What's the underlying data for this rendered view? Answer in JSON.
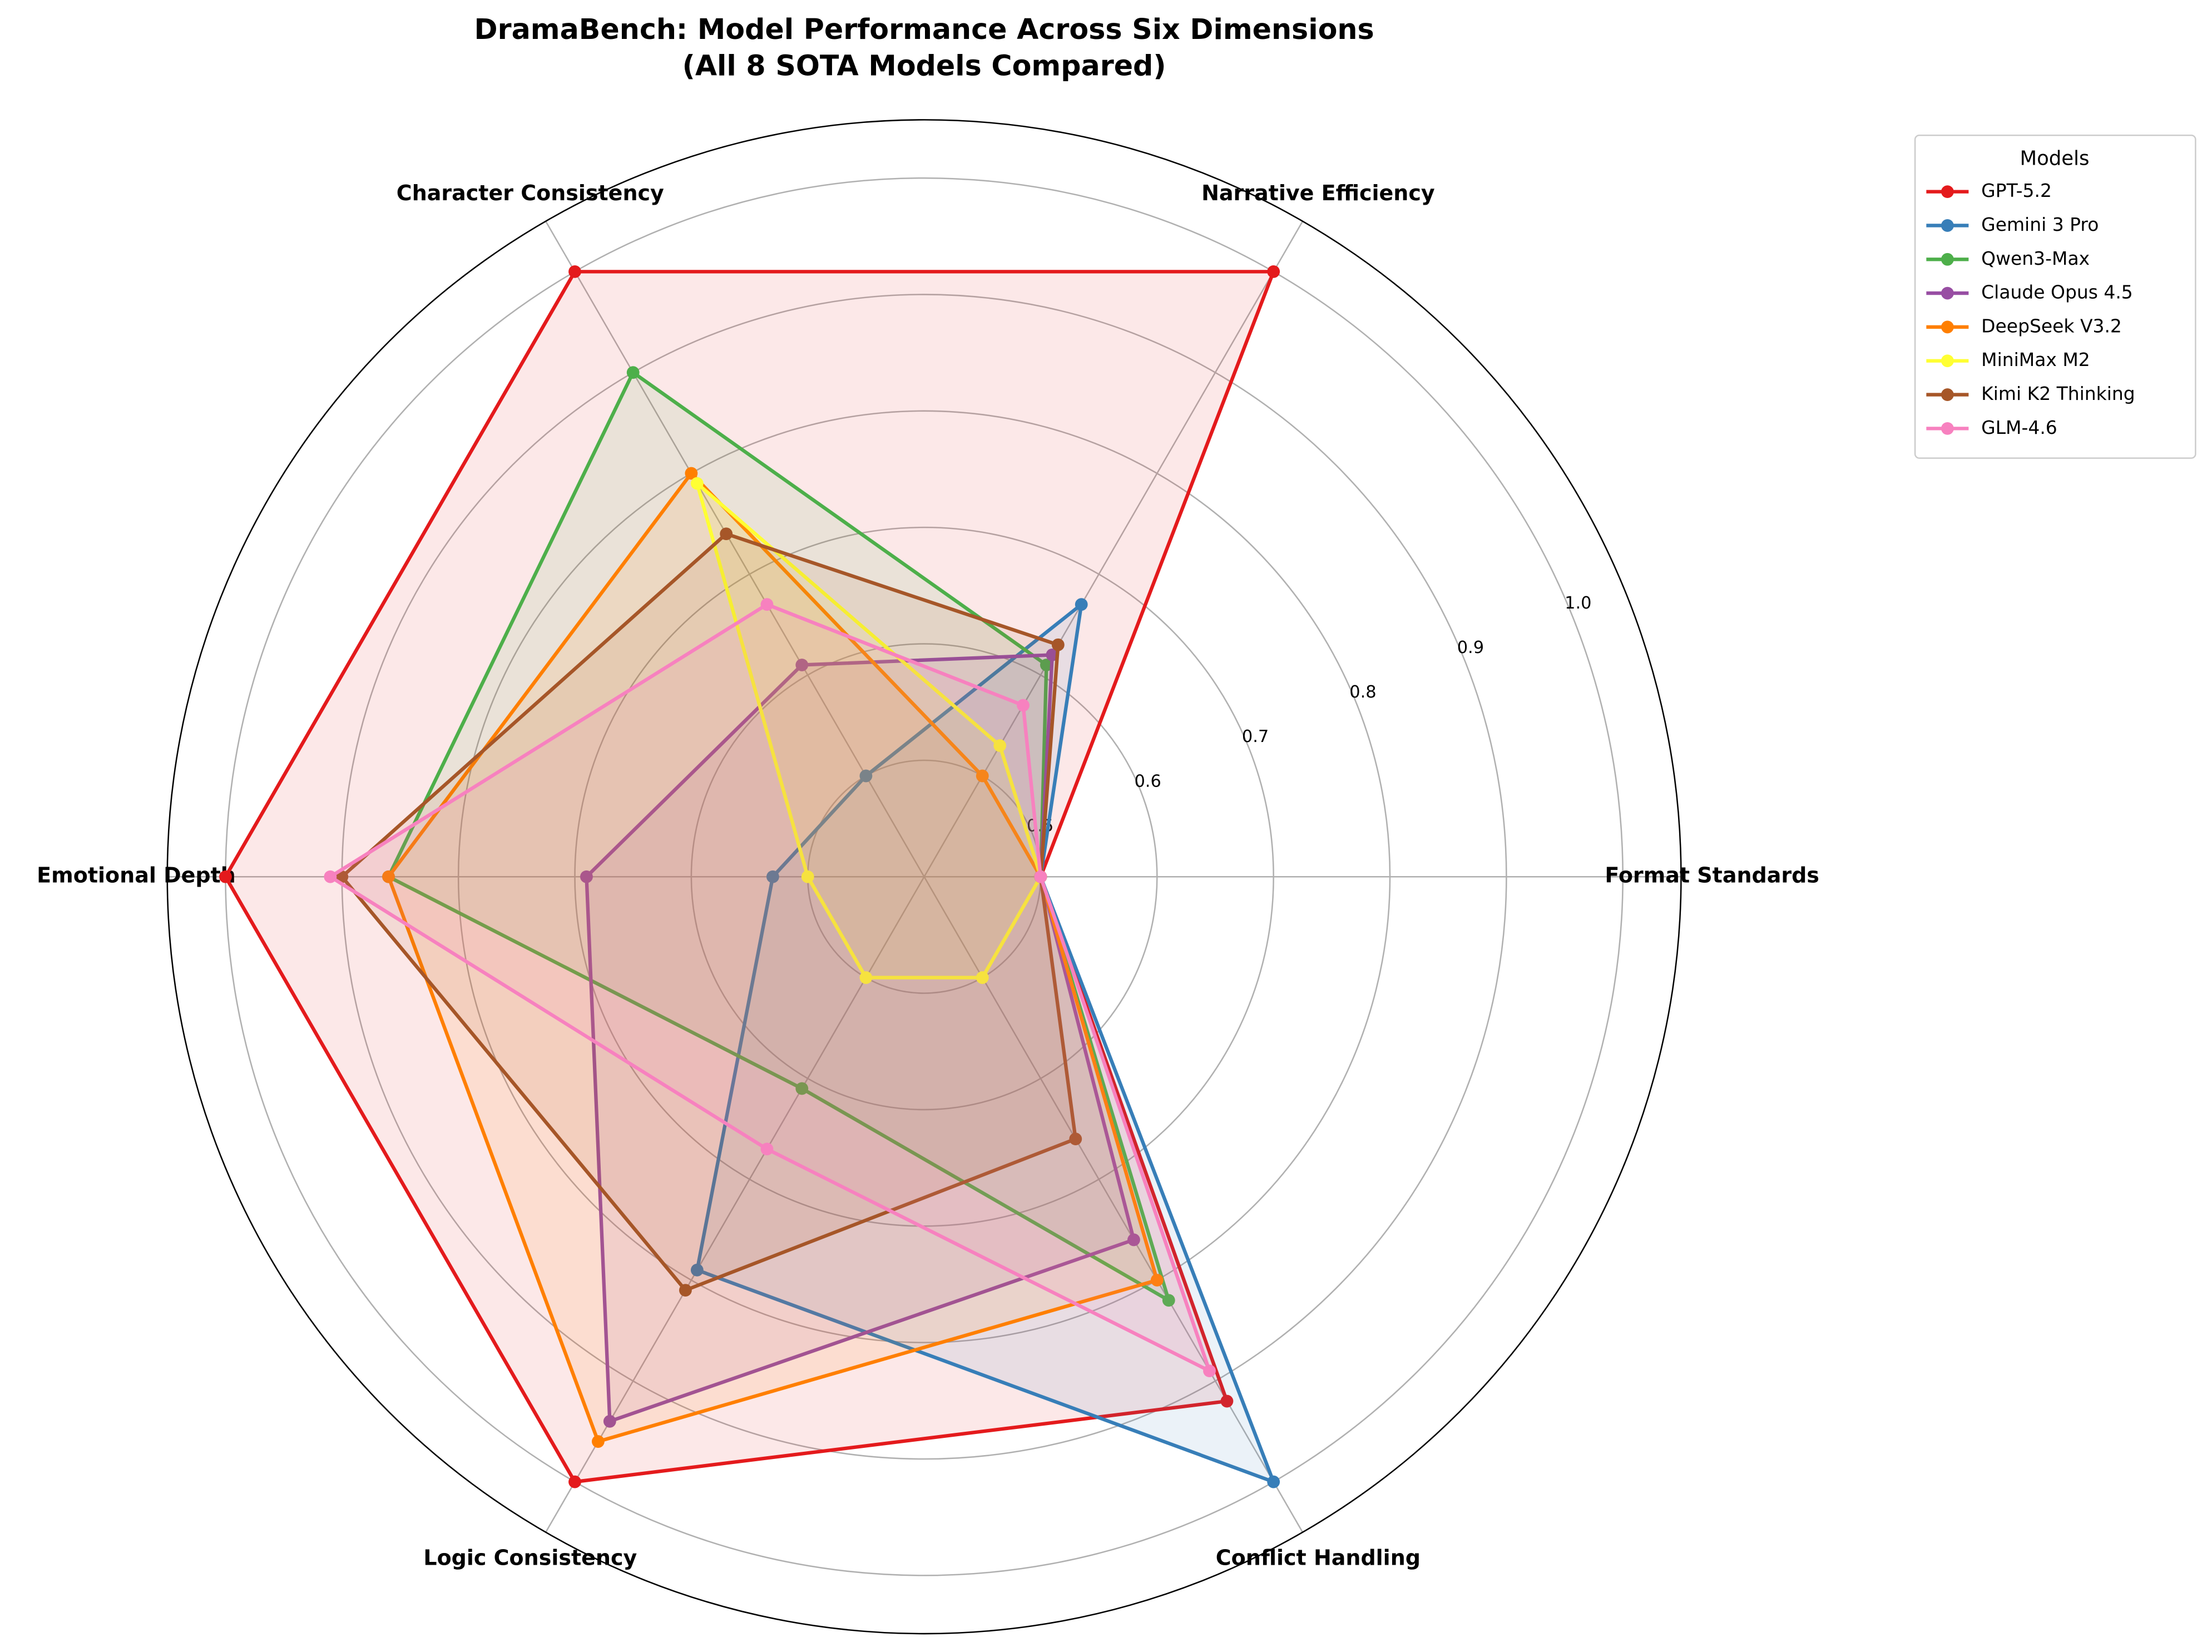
{
  "chart_data": {
    "type": "radar",
    "title": "DramaBench: Model Performance Across Six Dimensions",
    "subtitle": "(All 8 SOTA Models Compared)",
    "categories": [
      "Format Standards",
      "Narrative Efficiency",
      "Character Consistency",
      "Emotional Depth",
      "Logic Consistency",
      "Conflict Handling"
    ],
    "ylim": [
      0.4,
      1.05
    ],
    "yticks": [
      0.5,
      0.6,
      0.7,
      0.8,
      0.9,
      {
        "value": 1,
        "label": "1.0"
      }
    ],
    "grid": true,
    "legend_title": "Models",
    "legend_position": "upper right outside",
    "series": [
      {
        "name": "GPT-5.2",
        "color": "#e41a1c",
        "values": [
          0.5,
          1.0,
          1.0,
          1.0,
          1.0,
          0.92
        ]
      },
      {
        "name": "Gemini 3 Pro",
        "color": "#377eb8",
        "values": [
          0.5,
          0.67,
          0.5,
          0.53,
          0.79,
          1.0
        ]
      },
      {
        "name": "Qwen3-Max",
        "color": "#4daf4a",
        "values": [
          0.5,
          0.61,
          0.9,
          0.86,
          0.61,
          0.82
        ]
      },
      {
        "name": "Claude Opus 4.5",
        "color": "#984ea3",
        "values": [
          0.5,
          0.62,
          0.61,
          0.69,
          0.94,
          0.76
        ]
      },
      {
        "name": "DeepSeek V3.2",
        "color": "#ff7f00",
        "values": [
          0.5,
          0.5,
          0.8,
          0.86,
          0.96,
          0.8
        ]
      },
      {
        "name": "MiniMax M2",
        "color": "#ffff33",
        "values": [
          0.5,
          0.53,
          0.79,
          0.5,
          0.5,
          0.5
        ]
      },
      {
        "name": "Kimi K2 Thinking",
        "color": "#a65628",
        "values": [
          0.5,
          0.63,
          0.74,
          0.9,
          0.81,
          0.66
        ]
      },
      {
        "name": "GLM-4.6",
        "color": "#f781bf",
        "values": [
          0.5,
          0.57,
          0.67,
          0.91,
          0.67,
          0.89
        ]
      }
    ]
  }
}
